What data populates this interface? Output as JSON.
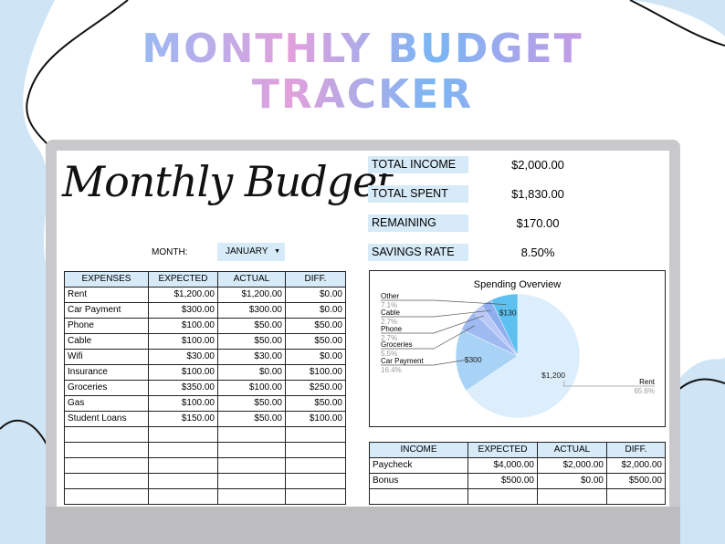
{
  "header": {
    "title_line1": "MONTHLY BUDGET",
    "title_line2": "TRACKER"
  },
  "sheet": {
    "title": "Monthly Budget",
    "month_label": "MONTH:",
    "month": "JANUARY"
  },
  "summary": [
    {
      "label": "TOTAL INCOME",
      "value": "$2,000.00"
    },
    {
      "label": "TOTAL SPENT",
      "value": "$1,830.00"
    },
    {
      "label": "REMAINING",
      "value": "$170.00"
    },
    {
      "label": "SAVINGS RATE",
      "value": "8.50%"
    }
  ],
  "expenses": {
    "columns": [
      "EXPENSES",
      "EXPECTED",
      "ACTUAL",
      "DIFF."
    ],
    "rows": [
      [
        "Rent",
        "$1,200.00",
        "$1,200.00",
        "$0.00"
      ],
      [
        "Car Payment",
        "$300.00",
        "$300.00",
        "$0.00"
      ],
      [
        "Phone",
        "$100.00",
        "$50.00",
        "$50.00"
      ],
      [
        "Cable",
        "$100.00",
        "$50.00",
        "$50.00"
      ],
      [
        "Wifi",
        "$30.00",
        "$30.00",
        "$0.00"
      ],
      [
        "Insurance",
        "$100.00",
        "$0.00",
        "$100.00"
      ],
      [
        "Groceries",
        "$350.00",
        "$100.00",
        "$250.00"
      ],
      [
        "Gas",
        "$100.00",
        "$50.00",
        "$50.00"
      ],
      [
        "Student Loans",
        "$150.00",
        "$50.00",
        "$100.00"
      ]
    ]
  },
  "chart_data": {
    "type": "pie",
    "title": "Spending Overview",
    "categories": [
      "Rent",
      "Car Payment",
      "Groceries",
      "Phone",
      "Cable",
      "Other"
    ],
    "values": [
      1200,
      300,
      100,
      50,
      50,
      130
    ],
    "value_labels": [
      "$1,200",
      "$300",
      null,
      null,
      null,
      "$130"
    ],
    "percent_labels": [
      "65.6%",
      "16.4%",
      "5.5%",
      "2.7%",
      "2.7%",
      "7.1%"
    ],
    "colors": [
      "#dcedfb",
      "#a8d3f6",
      "#9fb9f1",
      "#b9c8f6",
      "#8eaeee",
      "#5cc1f1"
    ]
  },
  "income": {
    "columns": [
      "INCOME",
      "EXPECTED",
      "ACTUAL",
      "DIFF."
    ],
    "rows": [
      [
        "Paycheck",
        "$4,000.00",
        "$2,000.00",
        "$2,000.00"
      ],
      [
        "Bonus",
        "$500.00",
        "$0.00",
        "$500.00"
      ]
    ]
  }
}
